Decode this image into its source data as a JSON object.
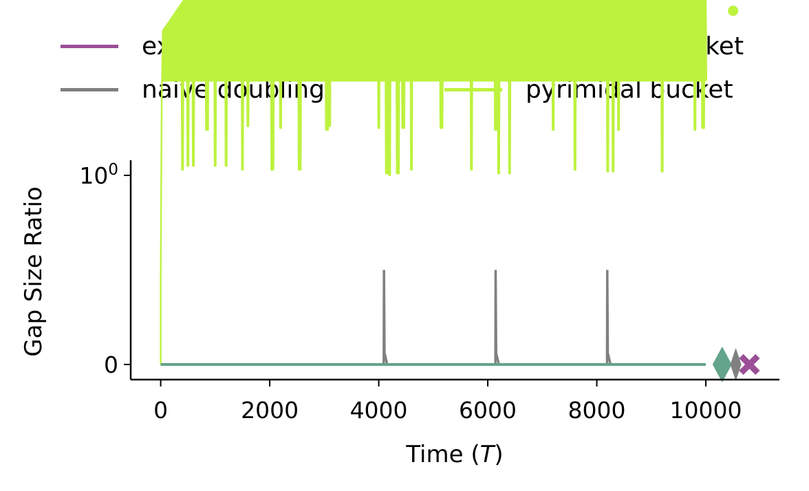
{
  "chart_data": {
    "type": "line",
    "xlabel": "Time (T)",
    "xlabel_main": "Time (",
    "xlabel_var": "T",
    "xlabel_end": ")",
    "ylabel": "Gap Size Ratio",
    "x_ticks": [
      0,
      2000,
      4000,
      6000,
      8000,
      10000
    ],
    "y_ticks": [
      {
        "value": 0,
        "label": "0"
      },
      {
        "value": 1,
        "label": "10",
        "exp": "0"
      }
    ],
    "xlim": [
      -550,
      11350
    ],
    "ylim": [
      -0.08,
      1.08
    ],
    "legend_position": "above plot, two columns",
    "series": [
      {
        "name": "extended ringbuf",
        "color": "#9b4f96",
        "values": [],
        "final_marker": {
          "shape": "x",
          "x": 10800,
          "y": 0
        }
      },
      {
        "name": "naive doubling",
        "color": "#808080",
        "baseline": 0,
        "spikes": [
          {
            "x": 4096,
            "y": 0.5
          },
          {
            "x": 6144,
            "y": 0.5
          },
          {
            "x": 8192,
            "y": 0.5
          }
        ],
        "x_range": [
          0,
          10000
        ],
        "final_marker": {
          "shape": "thin-diamond",
          "x": 10550,
          "y": 0
        }
      },
      {
        "name": "saturating bucket",
        "color": "#64a48a",
        "constant": 0,
        "x_range": [
          0,
          10000
        ],
        "final_marker": {
          "shape": "diamond",
          "x": 10300,
          "y": 0
        }
      },
      {
        "name": "pyrimidal bucket",
        "color": "#bdf23f",
        "upper_envelope": 1.96,
        "x_range": [
          0,
          10000
        ],
        "dips": [
          {
            "x": 400,
            "y": 1.03
          },
          {
            "x": 500,
            "y": 1.05
          },
          {
            "x": 600,
            "y": 1.05
          },
          {
            "x": 850,
            "y": 1.24
          },
          {
            "x": 1000,
            "y": 1.05
          },
          {
            "x": 1200,
            "y": 1.05
          },
          {
            "x": 1500,
            "y": 1.03
          },
          {
            "x": 1600,
            "y": 1.26
          },
          {
            "x": 2050,
            "y": 1.03
          },
          {
            "x": 2200,
            "y": 1.25
          },
          {
            "x": 2550,
            "y": 1.03
          },
          {
            "x": 3050,
            "y": 1.24
          },
          {
            "x": 3100,
            "y": 1.26
          },
          {
            "x": 4000,
            "y": 1.25
          },
          {
            "x": 4150,
            "y": 1.01
          },
          {
            "x": 4200,
            "y": 1.0
          },
          {
            "x": 4350,
            "y": 1.01
          },
          {
            "x": 4450,
            "y": 1.25
          },
          {
            "x": 4600,
            "y": 1.03
          },
          {
            "x": 5150,
            "y": 1.25
          },
          {
            "x": 5700,
            "y": 1.03
          },
          {
            "x": 6150,
            "y": 1.24
          },
          {
            "x": 6200,
            "y": 1.01
          },
          {
            "x": 6400,
            "y": 1.01
          },
          {
            "x": 7200,
            "y": 1.24
          },
          {
            "x": 7600,
            "y": 1.03
          },
          {
            "x": 8200,
            "y": 1.02
          },
          {
            "x": 8300,
            "y": 1.02
          },
          {
            "x": 8400,
            "y": 1.24
          },
          {
            "x": 9200,
            "y": 1.02
          },
          {
            "x": 9800,
            "y": 1.24
          },
          {
            "x": 9950,
            "y": 1.25
          }
        ],
        "final_marker": {
          "shape": "circle",
          "x": 10500,
          "y": 1.87
        }
      }
    ]
  }
}
